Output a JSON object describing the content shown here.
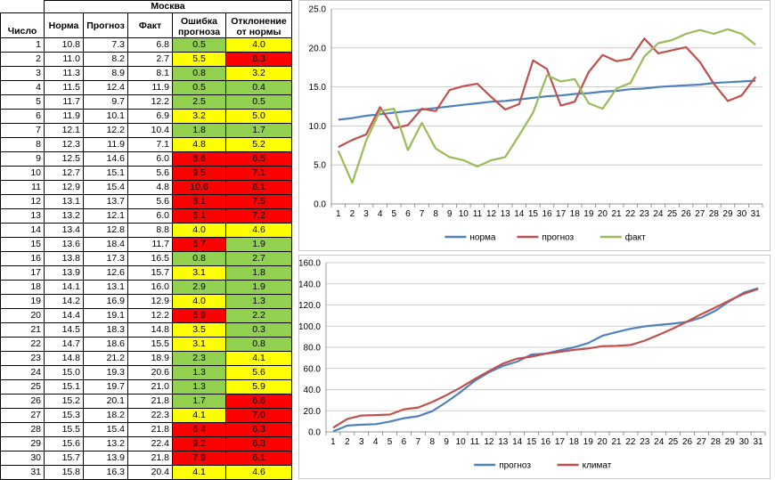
{
  "table": {
    "title": "Москва",
    "headers": [
      "Число",
      "Норма",
      "Прогноз",
      "Факт",
      "Ошибка прогноза",
      "Отклонение от нормы"
    ],
    "rows": [
      [
        "1",
        "10.8",
        "7.3",
        "6.8",
        "0.5",
        "4.0"
      ],
      [
        "2",
        "11.0",
        "8.2",
        "2.7",
        "5.5",
        "8.3"
      ],
      [
        "3",
        "11.3",
        "8.9",
        "8.1",
        "0.8",
        "3.2"
      ],
      [
        "4",
        "11.5",
        "12.4",
        "11.9",
        "0.5",
        "0.4"
      ],
      [
        "5",
        "11.7",
        "9.7",
        "12.2",
        "2.5",
        "0.5"
      ],
      [
        "6",
        "11.9",
        "10.1",
        "6.9",
        "3.2",
        "5.0"
      ],
      [
        "7",
        "12.1",
        "12.2",
        "10.4",
        "1.8",
        "1.7"
      ],
      [
        "8",
        "12.3",
        "11.9",
        "7.1",
        "4.8",
        "5.2"
      ],
      [
        "9",
        "12.5",
        "14.6",
        "6.0",
        "8.6",
        "6.5"
      ],
      [
        "10",
        "12.7",
        "15.1",
        "5.6",
        "9.5",
        "7.1"
      ],
      [
        "11",
        "12.9",
        "15.4",
        "4.8",
        "10.6",
        "8.1"
      ],
      [
        "12",
        "13.1",
        "13.7",
        "5.6",
        "8.1",
        "7.5"
      ],
      [
        "13",
        "13.2",
        "12.1",
        "6.0",
        "6.1",
        "7.2"
      ],
      [
        "14",
        "13.4",
        "12.8",
        "8.8",
        "4.0",
        "4.6"
      ],
      [
        "15",
        "13.6",
        "18.4",
        "11.7",
        "6.7",
        "1.9"
      ],
      [
        "16",
        "13.8",
        "17.3",
        "16.5",
        "0.8",
        "2.7"
      ],
      [
        "17",
        "13.9",
        "12.6",
        "15.7",
        "3.1",
        "1.8"
      ],
      [
        "18",
        "14.1",
        "13.1",
        "16.0",
        "2.9",
        "1.9"
      ],
      [
        "19",
        "14.2",
        "16.9",
        "12.9",
        "4.0",
        "1.3"
      ],
      [
        "20",
        "14.4",
        "19.1",
        "12.2",
        "6.9",
        "2.2"
      ],
      [
        "21",
        "14.5",
        "18.3",
        "14.8",
        "3.5",
        "0.3"
      ],
      [
        "22",
        "14.7",
        "18.6",
        "15.5",
        "3.1",
        "0.8"
      ],
      [
        "23",
        "14.8",
        "21.2",
        "18.9",
        "2.3",
        "4.1"
      ],
      [
        "24",
        "15.0",
        "19.3",
        "20.6",
        "1.3",
        "5.6"
      ],
      [
        "25",
        "15.1",
        "19.7",
        "21.0",
        "1.3",
        "5.9"
      ],
      [
        "26",
        "15.2",
        "20.1",
        "21.8",
        "1.7",
        "6.6"
      ],
      [
        "27",
        "15.3",
        "18.2",
        "22.3",
        "4.1",
        "7.0"
      ],
      [
        "28",
        "15.5",
        "15.4",
        "21.8",
        "6.4",
        "6.3"
      ],
      [
        "29",
        "15.6",
        "13.2",
        "22.4",
        "9.2",
        "6.8"
      ],
      [
        "30",
        "15.7",
        "13.9",
        "21.8",
        "7.9",
        "6.1"
      ],
      [
        "31",
        "15.8",
        "16.3",
        "20.4",
        "4.1",
        "4.6"
      ]
    ],
    "error_colors": [
      "green",
      "yellow",
      "green",
      "green",
      "green",
      "yellow",
      "green",
      "yellow",
      "red",
      "red",
      "red",
      "red",
      "red",
      "yellow",
      "red",
      "green",
      "yellow",
      "green",
      "yellow",
      "red",
      "yellow",
      "yellow",
      "green",
      "green",
      "green",
      "green",
      "yellow",
      "red",
      "red",
      "red",
      "yellow"
    ],
    "deviation_colors": [
      "yellow",
      "red",
      "yellow",
      "green",
      "green",
      "yellow",
      "green",
      "yellow",
      "red",
      "red",
      "red",
      "red",
      "red",
      "yellow",
      "green",
      "green",
      "green",
      "green",
      "green",
      "green",
      "green",
      "green",
      "yellow",
      "yellow",
      "yellow",
      "red",
      "red",
      "red",
      "red",
      "red",
      "yellow"
    ]
  },
  "colors": {
    "green": "#92D050",
    "yellow": "#FFFF00",
    "red": "#FF0000",
    "norm": "#4F81BD",
    "forecast": "#C0504D",
    "fact": "#9BBB59"
  },
  "chart_data": [
    {
      "type": "line",
      "x": [
        1,
        2,
        3,
        4,
        5,
        6,
        7,
        8,
        9,
        10,
        11,
        12,
        13,
        14,
        15,
        16,
        17,
        18,
        19,
        20,
        21,
        22,
        23,
        24,
        25,
        26,
        27,
        28,
        29,
        30,
        31
      ],
      "ylim": [
        0,
        25
      ],
      "yticks": [
        "0.0",
        "5.0",
        "10.0",
        "15.0",
        "20.0",
        "25.0"
      ],
      "grid": true,
      "legend": "bottom",
      "series": [
        {
          "name": "норма",
          "color": "#4F81BD",
          "values": [
            10.8,
            11.0,
            11.3,
            11.5,
            11.7,
            11.9,
            12.1,
            12.3,
            12.5,
            12.7,
            12.9,
            13.1,
            13.2,
            13.4,
            13.6,
            13.8,
            13.9,
            14.1,
            14.2,
            14.4,
            14.5,
            14.7,
            14.8,
            15.0,
            15.1,
            15.2,
            15.3,
            15.5,
            15.6,
            15.7,
            15.8
          ]
        },
        {
          "name": "прогноз",
          "color": "#C0504D",
          "values": [
            7.3,
            8.2,
            8.9,
            12.4,
            9.7,
            10.1,
            12.2,
            11.9,
            14.6,
            15.1,
            15.4,
            13.7,
            12.1,
            12.8,
            18.4,
            17.3,
            12.6,
            13.1,
            16.9,
            19.1,
            18.3,
            18.6,
            21.2,
            19.3,
            19.7,
            20.1,
            18.2,
            15.4,
            13.2,
            13.9,
            16.3
          ]
        },
        {
          "name": "факт",
          "color": "#9BBB59",
          "values": [
            6.8,
            2.7,
            8.1,
            11.9,
            12.2,
            6.9,
            10.4,
            7.1,
            6.0,
            5.6,
            4.8,
            5.6,
            6.0,
            8.8,
            11.7,
            16.5,
            15.7,
            16.0,
            12.9,
            12.2,
            14.8,
            15.5,
            18.9,
            20.6,
            21.0,
            21.8,
            22.3,
            21.8,
            22.4,
            21.8,
            20.4
          ]
        }
      ]
    },
    {
      "type": "line",
      "x": [
        1,
        2,
        3,
        4,
        5,
        6,
        7,
        8,
        9,
        10,
        11,
        12,
        13,
        14,
        15,
        16,
        17,
        18,
        19,
        20,
        21,
        22,
        23,
        24,
        25,
        26,
        27,
        28,
        29,
        30,
        31
      ],
      "ylim": [
        0,
        160
      ],
      "yticks": [
        "0.0",
        "20.0",
        "40.0",
        "60.0",
        "80.0",
        "100.0",
        "120.0",
        "140.0",
        "160.0"
      ],
      "grid": true,
      "legend": "bottom",
      "series": [
        {
          "name": "прогноз",
          "color": "#4F81BD",
          "values": [
            0.5,
            6.0,
            6.8,
            7.3,
            9.8,
            13.0,
            14.8,
            19.6,
            28.2,
            37.7,
            48.3,
            56.4,
            62.5,
            66.5,
            73.2,
            74.0,
            77.1,
            80.0,
            84.0,
            90.9,
            94.4,
            97.5,
            99.8,
            101.1,
            102.4,
            104.1,
            108.2,
            114.6,
            123.8,
            131.7,
            135.8
          ]
        },
        {
          "name": "климат",
          "color": "#C0504D",
          "values": [
            4.0,
            12.3,
            15.5,
            15.9,
            16.4,
            21.4,
            23.1,
            28.3,
            34.8,
            41.9,
            50.0,
            57.5,
            64.7,
            69.3,
            71.2,
            73.9,
            75.7,
            77.6,
            78.9,
            81.1,
            81.4,
            82.2,
            86.3,
            91.9,
            97.8,
            104.4,
            111.4,
            117.7,
            124.5,
            130.6,
            135.2
          ]
        }
      ]
    }
  ]
}
